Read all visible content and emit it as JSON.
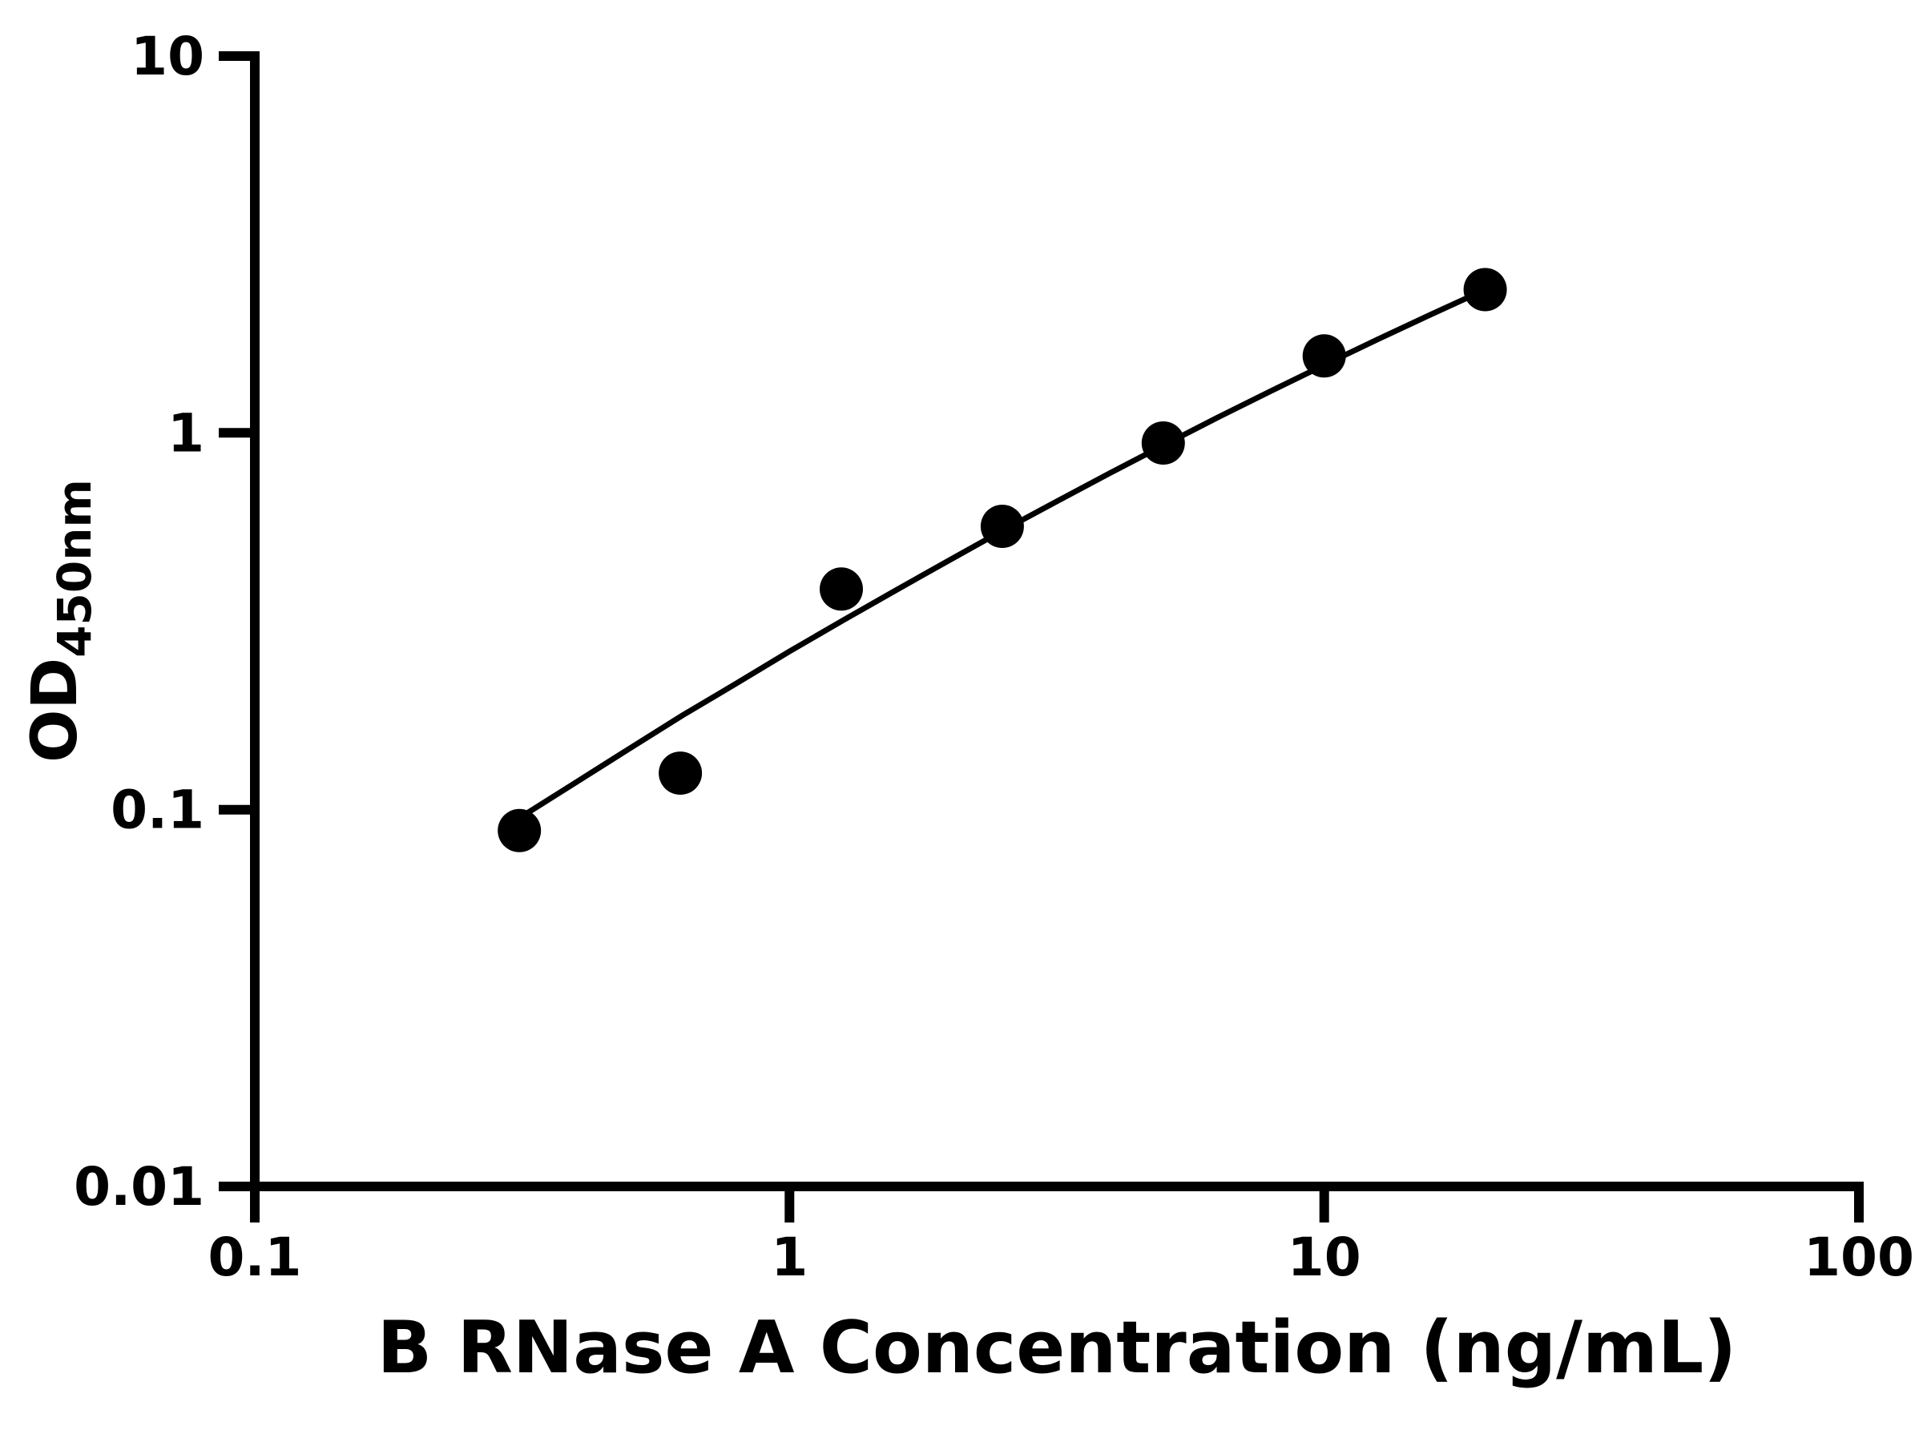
{
  "chart_data": {
    "type": "scatter",
    "title": "",
    "xlabel": "B RNase A Concentration (ng/mL)",
    "ylabel": "OD450nm",
    "ylabel_main": "OD",
    "ylabel_sub": "450nm",
    "x_scale": "log",
    "y_scale": "log",
    "xlim": [
      0.1,
      100
    ],
    "ylim": [
      0.01,
      10
    ],
    "grid": false,
    "legend": "none",
    "marker_color": "#000000",
    "curve_color": "#000000",
    "axis_color": "#000000",
    "background_color": "#ffffff",
    "x_ticks": [
      {
        "value": 0.1,
        "label": "0.1"
      },
      {
        "value": 1,
        "label": "1"
      },
      {
        "value": 10,
        "label": "10"
      },
      {
        "value": 100,
        "label": "100"
      }
    ],
    "y_ticks": [
      {
        "value": 0.01,
        "label": "0.01"
      },
      {
        "value": 0.1,
        "label": "0.1"
      },
      {
        "value": 1,
        "label": "1"
      },
      {
        "value": 10,
        "label": "10"
      }
    ],
    "points": {
      "x": [
        0.3125,
        0.625,
        1.25,
        2.5,
        5,
        10,
        20
      ],
      "y": [
        0.088,
        0.125,
        0.385,
        0.565,
        0.94,
        1.6,
        2.4
      ]
    },
    "fit_curve": {
      "x": [
        0.3125,
        0.398,
        0.501,
        0.631,
        0.794,
        1.0,
        1.259,
        1.585,
        1.995,
        2.512,
        3.162,
        3.981,
        5.012,
        6.31,
        7.943,
        10.0,
        12.589,
        15.849,
        20.0
      ],
      "y": [
        0.095,
        0.118,
        0.145,
        0.178,
        0.216,
        0.263,
        0.318,
        0.383,
        0.46,
        0.552,
        0.658,
        0.783,
        0.928,
        1.097,
        1.291,
        1.514,
        1.771,
        2.063,
        2.399
      ]
    }
  }
}
